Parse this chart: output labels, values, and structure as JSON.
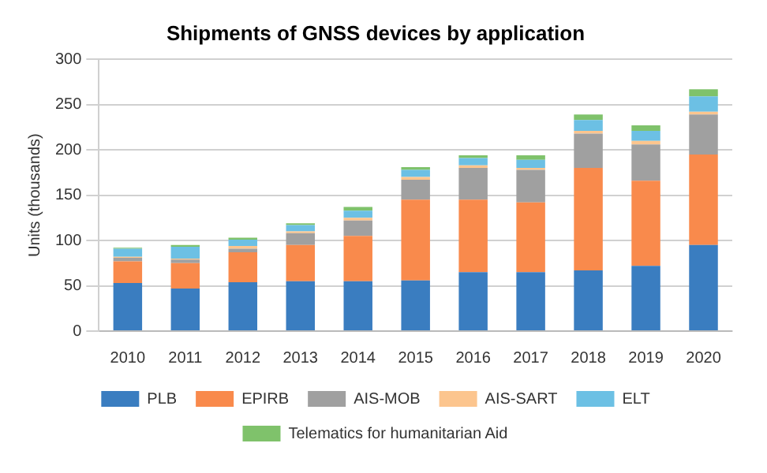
{
  "chart_data": {
    "type": "bar",
    "title": "Shipments of GNSS devices by application",
    "ylabel": "Units (thousands)",
    "stacked": true,
    "categories": [
      "2010",
      "2011",
      "2012",
      "2013",
      "2014",
      "2015",
      "2016",
      "2017",
      "2018",
      "2019",
      "2020"
    ],
    "series": [
      {
        "name": "PLB",
        "color": "#3a7dc0",
        "values": [
          53,
          47,
          54,
          55,
          55,
          56,
          65,
          65,
          67,
          72,
          95
        ]
      },
      {
        "name": "EPIRB",
        "color": "#f98a4c",
        "values": [
          24,
          28,
          33,
          40,
          50,
          89,
          80,
          77,
          113,
          94,
          100
        ]
      },
      {
        "name": "AIS-MOB",
        "color": "#a0a0a0",
        "values": [
          4,
          4,
          4,
          13,
          17,
          22,
          35,
          36,
          38,
          40,
          44
        ]
      },
      {
        "name": "AIS-SART",
        "color": "#fcc58e",
        "values": [
          1,
          1,
          3,
          2,
          3,
          3,
          3,
          2,
          3,
          4,
          3
        ]
      },
      {
        "name": "ELT",
        "color": "#6cc0e4",
        "values": [
          9,
          13,
          7,
          7,
          8,
          8,
          8,
          9,
          12,
          11,
          17
        ]
      },
      {
        "name": "Telematics for humanitarian Aid",
        "color": "#7fc26b",
        "values": [
          1,
          2,
          2,
          2,
          4,
          3,
          3,
          5,
          6,
          6,
          8
        ]
      }
    ],
    "ylim": [
      0,
      300
    ],
    "yticks": [
      0,
      50,
      100,
      150,
      200,
      250,
      300
    ],
    "grid": "y",
    "legend": "bottom"
  }
}
